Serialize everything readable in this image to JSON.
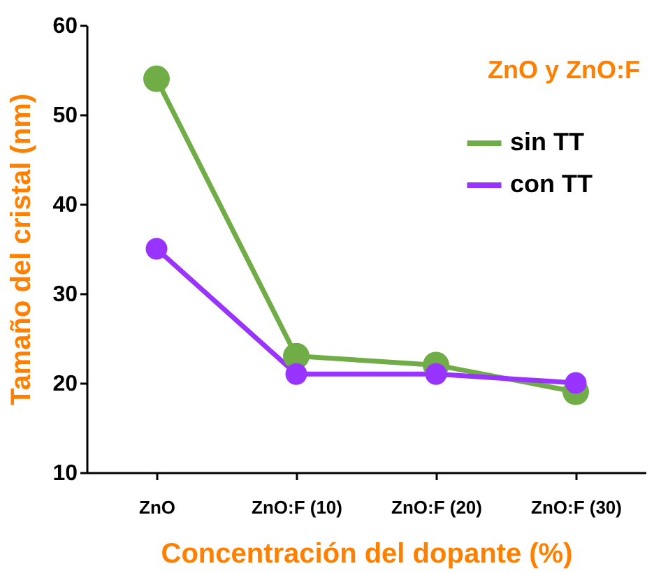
{
  "chart_data": {
    "type": "line",
    "title": "ZnO y ZnO:F",
    "xlabel": "Concentración del dopante (%)",
    "ylabel": "Tamaño del cristal (nm)",
    "categories": [
      "ZnO",
      "ZnO:F (10)",
      "ZnO:F (20)",
      "ZnO:F (30)"
    ],
    "series": [
      {
        "name": "sin TT",
        "color": "#70ad47",
        "values": [
          54,
          23,
          22,
          19
        ]
      },
      {
        "name": "con TT",
        "color": "#9933ff",
        "values": [
          35,
          21,
          21,
          20
        ]
      }
    ],
    "ylim": [
      10,
      60
    ],
    "yticks": [
      10,
      20,
      30,
      40,
      50,
      60
    ],
    "grid": false,
    "legend": "top right",
    "marker": "circle",
    "line_style": "solid"
  }
}
